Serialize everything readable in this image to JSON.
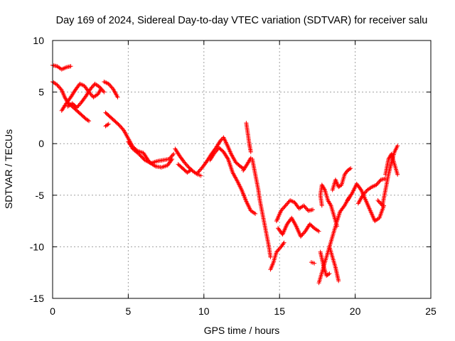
{
  "chart_data": {
    "type": "scatter",
    "title": "Day 169 of 2024, Sidereal Day-to-day VTEC variation (SDTVAR) for receiver salu",
    "xlabel": "GPS time / hours",
    "ylabel": "SDTVAR / TECUs",
    "xlim": [
      0,
      25
    ],
    "ylim": [
      -15,
      10
    ],
    "xticks": [
      0,
      5,
      10,
      15,
      20,
      25
    ],
    "yticks": [
      -15,
      -10,
      -5,
      0,
      5,
      10
    ],
    "xtick_labels": [
      "0",
      "5",
      "10",
      "15",
      "20",
      "25"
    ],
    "ytick_labels": [
      "-15",
      "-10",
      "-5",
      "0",
      "5",
      "10"
    ],
    "grid": true,
    "marker": "+",
    "series": [
      {
        "name": "SDTVAR",
        "color": "#ff0000",
        "traces": [
          [
            [
              0.0,
              7.6
            ],
            [
              0.3,
              7.5
            ],
            [
              0.6,
              7.2
            ],
            [
              0.9,
              7.4
            ],
            [
              1.2,
              7.5
            ]
          ],
          [
            [
              0.0,
              6.0
            ],
            [
              0.3,
              5.7
            ],
            [
              0.6,
              5.2
            ],
            [
              0.8,
              4.5
            ],
            [
              1.0,
              4.0
            ],
            [
              1.3,
              3.6
            ],
            [
              1.6,
              3.2
            ],
            [
              1.9,
              2.8
            ],
            [
              2.2,
              2.4
            ],
            [
              2.4,
              2.2
            ]
          ],
          [
            [
              0.6,
              3.2
            ],
            [
              0.9,
              3.9
            ],
            [
              1.2,
              4.5
            ],
            [
              1.5,
              5.2
            ],
            [
              1.8,
              5.8
            ],
            [
              2.1,
              5.6
            ],
            [
              2.4,
              5.0
            ],
            [
              2.7,
              4.5
            ],
            [
              3.0,
              4.8
            ],
            [
              3.2,
              5.3
            ]
          ],
          [
            [
              1.0,
              3.6
            ],
            [
              1.3,
              3.9
            ],
            [
              1.6,
              3.5
            ],
            [
              1.9,
              4.0
            ],
            [
              2.2,
              4.6
            ],
            [
              2.5,
              5.3
            ],
            [
              2.8,
              5.8
            ],
            [
              3.1,
              5.5
            ],
            [
              3.4,
              5.0
            ]
          ],
          [
            [
              3.4,
              6.0
            ],
            [
              3.7,
              5.8
            ],
            [
              4.0,
              5.3
            ],
            [
              4.3,
              4.5
            ]
          ],
          [
            [
              3.5,
              3.0
            ],
            [
              3.8,
              2.6
            ],
            [
              4.1,
              2.2
            ],
            [
              4.4,
              1.8
            ],
            [
              4.7,
              1.3
            ],
            [
              5.0,
              0.5
            ],
            [
              5.3,
              -0.3
            ],
            [
              5.6,
              -0.7
            ],
            [
              6.0,
              -0.9
            ],
            [
              6.4,
              -1.8
            ],
            [
              6.8,
              -2.2
            ],
            [
              7.2,
              -2.3
            ],
            [
              7.6,
              -2.1
            ],
            [
              7.9,
              -1.5
            ]
          ],
          [
            [
              3.5,
              1.7
            ],
            [
              3.7,
              1.9
            ]
          ],
          [
            [
              5.0,
              0.2
            ],
            [
              5.3,
              -0.5
            ],
            [
              5.7,
              -1.0
            ],
            [
              6.1,
              -1.6
            ],
            [
              6.5,
              -1.9
            ],
            [
              6.9,
              -1.7
            ],
            [
              7.3,
              -1.6
            ],
            [
              7.7,
              -1.5
            ],
            [
              8.0,
              -1.0
            ]
          ],
          [
            [
              8.1,
              -0.5
            ],
            [
              8.4,
              -1.2
            ],
            [
              8.7,
              -1.8
            ],
            [
              9.0,
              -2.3
            ],
            [
              9.3,
              -2.7
            ],
            [
              9.6,
              -3.0
            ],
            [
              9.8,
              -3.1
            ]
          ],
          [
            [
              8.3,
              -2.0
            ],
            [
              8.6,
              -2.4
            ],
            [
              8.9,
              -2.8
            ],
            [
              9.1,
              -2.6
            ]
          ],
          [
            [
              9.6,
              -2.8
            ],
            [
              9.9,
              -2.3
            ],
            [
              10.2,
              -1.7
            ],
            [
              10.5,
              -1.0
            ],
            [
              10.8,
              -0.4
            ],
            [
              11.1,
              0.3
            ],
            [
              11.3,
              0.6
            ],
            [
              11.5,
              0.0
            ],
            [
              11.8,
              -1.0
            ],
            [
              12.1,
              -1.8
            ],
            [
              12.4,
              -2.2
            ],
            [
              12.6,
              -2.4
            ]
          ],
          [
            [
              10.4,
              -1.6
            ],
            [
              10.7,
              -0.9
            ],
            [
              11.0,
              -0.4
            ],
            [
              11.3,
              -0.8
            ],
            [
              11.6,
              -1.5
            ],
            [
              11.9,
              -2.8
            ],
            [
              12.2,
              -3.6
            ],
            [
              12.5,
              -4.5
            ],
            [
              12.8,
              -5.6
            ],
            [
              13.1,
              -6.5
            ],
            [
              13.4,
              -6.8
            ]
          ],
          [
            [
              12.6,
              -2.6
            ],
            [
              12.9,
              -1.9
            ],
            [
              13.1,
              -1.4
            ]
          ],
          [
            [
              12.8,
              2.0
            ],
            [
              12.9,
              1.0
            ],
            [
              13.0,
              0.0
            ],
            [
              13.1,
              -0.8
            ]
          ],
          [
            [
              13.2,
              -1.5
            ],
            [
              13.4,
              -3.0
            ],
            [
              13.6,
              -4.5
            ],
            [
              13.7,
              -5.5
            ],
            [
              13.9,
              -7.0
            ],
            [
              14.1,
              -8.5
            ],
            [
              14.3,
              -10.0
            ],
            [
              14.4,
              -11.0
            ]
          ],
          [
            [
              14.4,
              -12.2
            ],
            [
              14.6,
              -11.5
            ],
            [
              14.8,
              -10.5
            ],
            [
              15.1,
              -10.0
            ],
            [
              15.3,
              -9.6
            ]
          ],
          [
            [
              14.8,
              -7.5
            ],
            [
              15.1,
              -6.5
            ],
            [
              15.4,
              -6.0
            ],
            [
              15.7,
              -5.5
            ],
            [
              16.0,
              -5.7
            ],
            [
              16.3,
              -6.3
            ],
            [
              16.6,
              -6.0
            ],
            [
              16.9,
              -6.5
            ],
            [
              17.2,
              -6.4
            ]
          ],
          [
            [
              14.9,
              -8.2
            ],
            [
              15.2,
              -8.8
            ],
            [
              15.5,
              -7.8
            ],
            [
              15.8,
              -7.2
            ],
            [
              16.1,
              -8.0
            ],
            [
              16.4,
              -9.0
            ],
            [
              16.7,
              -8.5
            ],
            [
              17.0,
              -7.8
            ],
            [
              17.3,
              -8.2
            ],
            [
              17.6,
              -8.5
            ]
          ],
          [
            [
              17.1,
              -11.5
            ],
            [
              17.3,
              -11.6
            ]
          ],
          [
            [
              17.6,
              -13.5
            ],
            [
              17.8,
              -12.5
            ],
            [
              18.0,
              -11.5
            ],
            [
              18.2,
              -10.5
            ],
            [
              18.4,
              -9.5
            ],
            [
              18.6,
              -8.5
            ],
            [
              18.8,
              -7.5
            ],
            [
              19.0,
              -6.6
            ],
            [
              19.3,
              -6.0
            ],
            [
              19.6,
              -5.2
            ]
          ],
          [
            [
              17.7,
              -10.5
            ],
            [
              17.9,
              -11.8
            ],
            [
              18.1,
              -12.8
            ],
            [
              18.3,
              -12.6
            ]
          ],
          [
            [
              17.8,
              -6.0
            ],
            [
              17.7,
              -5.0
            ],
            [
              17.8,
              -4.0
            ],
            [
              18.0,
              -4.5
            ],
            [
              18.2,
              -5.5
            ],
            [
              18.4,
              -6.0
            ],
            [
              18.6,
              -7.0
            ],
            [
              18.8,
              -8.0
            ]
          ],
          [
            [
              18.3,
              -10.0
            ],
            [
              18.5,
              -11.0
            ],
            [
              18.7,
              -12.0
            ],
            [
              18.9,
              -13.3
            ]
          ],
          [
            [
              18.5,
              -4.5
            ],
            [
              18.7,
              -3.5
            ],
            [
              18.9,
              -4.2
            ],
            [
              19.1,
              -4.0
            ],
            [
              19.3,
              -3.0
            ],
            [
              19.5,
              -2.6
            ],
            [
              19.7,
              -2.4
            ]
          ],
          [
            [
              19.5,
              -5.5
            ],
            [
              19.8,
              -4.8
            ],
            [
              20.1,
              -3.9
            ],
            [
              20.4,
              -4.5
            ],
            [
              20.7,
              -5.5
            ],
            [
              21.0,
              -6.5
            ],
            [
              21.3,
              -7.5
            ],
            [
              21.6,
              -7.2
            ],
            [
              21.9,
              -6.0
            ]
          ],
          [
            [
              20.2,
              -5.8
            ],
            [
              20.5,
              -5.0
            ],
            [
              20.8,
              -4.5
            ],
            [
              21.1,
              -4.2
            ],
            [
              21.4,
              -4.0
            ],
            [
              21.7,
              -3.5
            ],
            [
              22.0,
              -3.4
            ]
          ],
          [
            [
              21.5,
              -5.5
            ],
            [
              21.8,
              -6.0
            ],
            [
              22.0,
              -4.5
            ],
            [
              22.2,
              -3.0
            ],
            [
              22.4,
              -1.8
            ],
            [
              22.6,
              -0.8
            ],
            [
              22.8,
              -0.2
            ]
          ],
          [
            [
              22.0,
              -3.0
            ],
            [
              22.2,
              -1.5
            ],
            [
              22.4,
              -1.0
            ],
            [
              22.6,
              -2.0
            ],
            [
              22.8,
              -3.0
            ]
          ]
        ]
      }
    ]
  }
}
